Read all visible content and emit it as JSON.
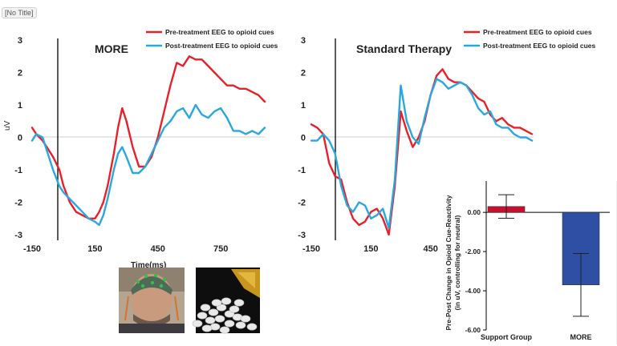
{
  "window": {
    "title_tab": "[No Title]"
  },
  "legend": {
    "pre": "Pre-treatment EEG to opioid cues",
    "post": "Post-treatment EEG to opioid cues"
  },
  "colors": {
    "pre": "#e8202a",
    "post": "#29a8e0",
    "bar_support": "#c8102e",
    "bar_more": "#2e4fa3",
    "axis": "#000000"
  },
  "chart_data": [
    {
      "type": "line",
      "title": "MORE",
      "xlabel": "Time(ms)",
      "ylabel": "uV",
      "ylim": [
        -3,
        3
      ],
      "xticks": [
        "-150",
        "150",
        "450",
        "750"
      ],
      "yticks": [
        "3",
        "2",
        "1",
        "0",
        "-1",
        "-2",
        "-3"
      ],
      "series": [
        {
          "name": "Pre-treatment EEG to opioid cues",
          "x": [
            -150,
            -130,
            -100,
            -80,
            -50,
            -20,
            0,
            30,
            60,
            90,
            120,
            150,
            170,
            190,
            210,
            240,
            260,
            280,
            300,
            330,
            360,
            390,
            420,
            450,
            480,
            510,
            540,
            570,
            600,
            630,
            660,
            690,
            720,
            750,
            780,
            810,
            840,
            870,
            900,
            930,
            960
          ],
          "values": [
            0.3,
            0.1,
            -0.1,
            -0.3,
            -0.6,
            -1.0,
            -1.5,
            -2.0,
            -2.3,
            -2.4,
            -2.5,
            -2.5,
            -2.3,
            -2.0,
            -1.5,
            -0.5,
            0.3,
            0.9,
            0.5,
            -0.3,
            -0.9,
            -0.9,
            -0.6,
            0.0,
            0.8,
            1.6,
            2.3,
            2.2,
            2.5,
            2.4,
            2.4,
            2.2,
            2.0,
            1.8,
            1.6,
            1.6,
            1.5,
            1.5,
            1.4,
            1.3,
            1.1
          ]
        },
        {
          "name": "Post-treatment EEG to opioid cues",
          "x": [
            -150,
            -130,
            -100,
            -80,
            -50,
            -20,
            0,
            30,
            60,
            90,
            120,
            150,
            170,
            190,
            210,
            240,
            260,
            280,
            300,
            330,
            360,
            390,
            420,
            450,
            480,
            510,
            540,
            570,
            600,
            630,
            660,
            690,
            720,
            750,
            780,
            810,
            840,
            870,
            900,
            930,
            960
          ],
          "values": [
            -0.1,
            0.1,
            0.0,
            -0.4,
            -1.0,
            -1.5,
            -1.7,
            -1.9,
            -2.1,
            -2.3,
            -2.5,
            -2.6,
            -2.7,
            -2.4,
            -1.9,
            -1.0,
            -0.5,
            -0.3,
            -0.6,
            -1.1,
            -1.1,
            -0.9,
            -0.5,
            -0.1,
            0.3,
            0.5,
            0.8,
            0.9,
            0.6,
            1.0,
            0.7,
            0.6,
            0.8,
            0.9,
            0.6,
            0.2,
            0.2,
            0.1,
            0.2,
            0.1,
            0.3
          ]
        }
      ]
    },
    {
      "type": "line",
      "title": "Standard Therapy",
      "xlabel": "",
      "ylabel": "",
      "ylim": [
        -3,
        3
      ],
      "xticks": [
        "-150",
        "150",
        "450"
      ],
      "yticks": [
        "3",
        "2",
        "1",
        "0",
        "-1",
        "-2",
        "-3"
      ],
      "series": [
        {
          "name": "Pre-treatment EEG to opioid cues",
          "x": [
            -150,
            -120,
            -90,
            -60,
            -30,
            0,
            30,
            60,
            90,
            120,
            150,
            180,
            210,
            240,
            270,
            300,
            330,
            360,
            390,
            420,
            450,
            480,
            510,
            540,
            570,
            600,
            630,
            660,
            690,
            720,
            750,
            780,
            810,
            840,
            870,
            900,
            930,
            960
          ],
          "values": [
            0.4,
            0.3,
            0.1,
            -0.8,
            -1.2,
            -1.3,
            -2.0,
            -2.5,
            -2.7,
            -2.6,
            -2.3,
            -2.2,
            -2.5,
            -3.0,
            -1.5,
            0.8,
            0.2,
            -0.3,
            0.0,
            0.5,
            1.3,
            1.9,
            2.1,
            1.8,
            1.7,
            1.7,
            1.6,
            1.4,
            1.2,
            1.1,
            0.7,
            0.5,
            0.6,
            0.4,
            0.3,
            0.3,
            0.2,
            0.1
          ]
        },
        {
          "name": "Post-treatment EEG to opioid cues",
          "x": [
            -150,
            -120,
            -90,
            -60,
            -30,
            0,
            30,
            60,
            90,
            120,
            150,
            180,
            210,
            240,
            270,
            300,
            330,
            360,
            390,
            420,
            450,
            480,
            510,
            540,
            570,
            600,
            630,
            660,
            690,
            720,
            750,
            780,
            810,
            840,
            870,
            900,
            930,
            960
          ],
          "values": [
            -0.1,
            -0.1,
            0.1,
            -0.1,
            -0.5,
            -1.5,
            -2.1,
            -2.3,
            -2.0,
            -2.1,
            -2.5,
            -2.4,
            -2.2,
            -2.8,
            -1.3,
            1.6,
            0.5,
            0.0,
            -0.2,
            0.6,
            1.3,
            1.8,
            1.7,
            1.5,
            1.6,
            1.7,
            1.6,
            1.3,
            0.9,
            0.7,
            0.8,
            0.4,
            0.3,
            0.3,
            0.1,
            0.0,
            0.0,
            -0.1
          ]
        }
      ]
    },
    {
      "type": "bar",
      "title": "",
      "ylabel": "Pre-Post Change in Opioid Cue-Reactivity (in uV, controlling for neutral)",
      "ylabel_lines": [
        "Pre-Post Change in Opioid Cue-Reactivity",
        "(in uV, controlling for neutral)"
      ],
      "categories": [
        "Support Group",
        "MORE"
      ],
      "values": [
        0.3,
        -3.7
      ],
      "error_low": [
        -0.3,
        -5.3
      ],
      "error_high": [
        0.9,
        -2.1
      ],
      "ylim": [
        -6,
        1.6
      ],
      "yticks": [
        "0.00",
        "-2.00",
        "-4.00",
        "-6.00"
      ]
    }
  ],
  "images": [
    {
      "name": "eeg-cap-photo",
      "description": ""
    },
    {
      "name": "pills-photo",
      "description": ""
    }
  ]
}
